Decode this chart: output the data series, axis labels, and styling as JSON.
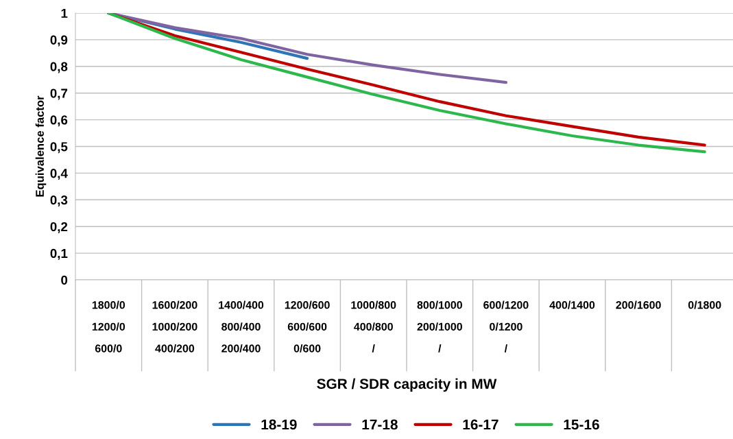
{
  "chart_data": {
    "type": "line",
    "xlabel": "SGR / SDR capacity in MW",
    "ylabel": "Equivalence factor",
    "categories": [
      "1800/0\n1200/0\n600/0",
      "1600/200\n1000/200\n400/200",
      "1400/400\n800/400\n200/400",
      "1200/600\n600/600\n0/600",
      "1000/800\n400/800\n/",
      "800/1000\n200/1000\n/",
      "600/1200\n0/1200\n/",
      "400/1400",
      "200/1600",
      "0/1800"
    ],
    "series": [
      {
        "name": "18-19",
        "color": "#2e75b6",
        "values": [
          1.0,
          0.94,
          0.89,
          0.83,
          null,
          null,
          null,
          null,
          null,
          null
        ]
      },
      {
        "name": "17-18",
        "color": "#8064a2",
        "values": [
          1.0,
          0.945,
          0.905,
          0.845,
          0.805,
          0.77,
          0.74,
          null,
          null,
          null
        ]
      },
      {
        "name": "16-17",
        "color": "#c00000",
        "values": [
          1.0,
          0.915,
          0.853,
          0.79,
          0.73,
          0.668,
          0.615,
          0.575,
          0.535,
          0.505
        ]
      },
      {
        "name": "15-16",
        "color": "#2db84d",
        "values": [
          1.0,
          0.905,
          0.825,
          0.76,
          0.695,
          0.635,
          0.585,
          0.54,
          0.505,
          0.48
        ]
      }
    ],
    "ylim": [
      0,
      1
    ],
    "yticks": [
      0,
      {
        "value": 0.1,
        "label": "0,1"
      },
      {
        "value": 0.2,
        "label": "0,2"
      },
      {
        "value": 0.3,
        "label": "0,3"
      },
      {
        "value": 0.4,
        "label": "0,4"
      },
      {
        "value": 0.5,
        "label": "0,5"
      },
      {
        "value": 0.6,
        "label": "0,6"
      },
      {
        "value": 0.7,
        "label": "0,7"
      },
      {
        "value": 0.8,
        "label": "0,8"
      },
      {
        "value": 0.9,
        "label": "0,9"
      },
      1
    ],
    "grid": "y",
    "legend": "bottom",
    "marker": "none",
    "line_style": "solid"
  }
}
